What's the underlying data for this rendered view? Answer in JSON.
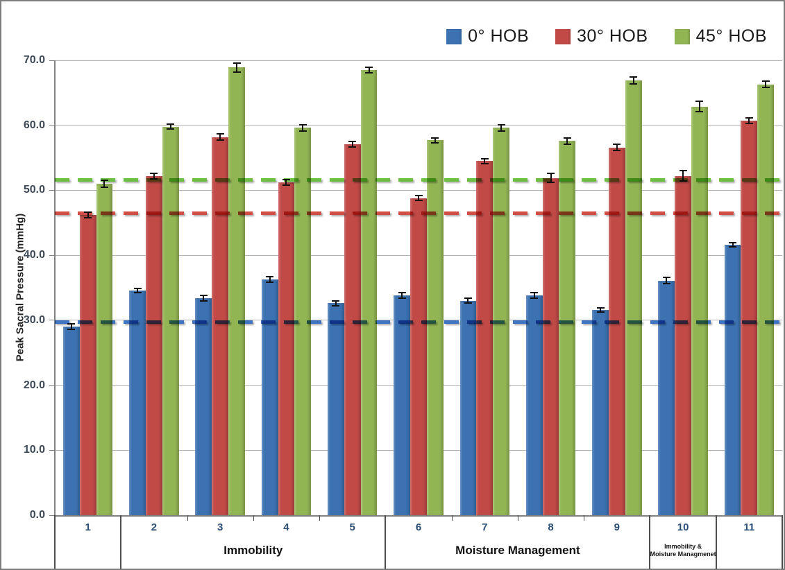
{
  "chart_data": {
    "type": "bar",
    "title": "",
    "xlabel": "",
    "ylabel": "Peak Sacral Pressure (mmHg)",
    "ylim": [
      0,
      70
    ],
    "ytick_step": 10,
    "ytick_labels": [
      "0.0",
      "10.0",
      "20.0",
      "30.0",
      "40.0",
      "50.0",
      "60.0",
      "70.0"
    ],
    "grid": true,
    "legend_position": "top-right",
    "error_bars": true,
    "categories": [
      "1",
      "2",
      "3",
      "4",
      "5",
      "6",
      "7",
      "8",
      "9",
      "10",
      "11"
    ],
    "series": [
      {
        "name": "0° HOB",
        "color": "#3c72b2",
        "values": [
          29.0,
          34.6,
          33.4,
          36.3,
          32.6,
          33.8,
          33.0,
          33.8,
          31.6,
          36.1,
          41.6
        ],
        "errors": [
          0.4,
          0.3,
          0.4,
          0.4,
          0.4,
          0.4,
          0.4,
          0.4,
          0.3,
          0.5,
          0.3
        ]
      },
      {
        "name": "30° HOB",
        "color": "#c14a47",
        "values": [
          46.2,
          52.2,
          58.2,
          51.2,
          57.1,
          48.8,
          54.5,
          51.9,
          56.6,
          52.2,
          60.7
        ],
        "errors": [
          0.4,
          0.4,
          0.5,
          0.4,
          0.4,
          0.4,
          0.4,
          0.7,
          0.5,
          0.8,
          0.4
        ]
      },
      {
        "name": "45° HOB",
        "color": "#92b554",
        "values": [
          51.0,
          59.8,
          68.9,
          59.6,
          68.5,
          57.7,
          59.6,
          57.6,
          66.9,
          62.9,
          66.3
        ],
        "errors": [
          0.5,
          0.4,
          0.7,
          0.5,
          0.4,
          0.4,
          0.5,
          0.5,
          0.5,
          0.8,
          0.5
        ]
      }
    ],
    "reference_lines": [
      {
        "series": "0° HOB",
        "value": 29.7,
        "color": "#3e74c2",
        "style": "dashed"
      },
      {
        "series": "30° HOB",
        "value": 46.5,
        "color": "#d24d44",
        "style": "dashed"
      },
      {
        "series": "45° HOB",
        "value": 51.6,
        "color": "#6cbf43",
        "style": "dashed"
      }
    ],
    "group_spans": [
      {
        "label": "",
        "from": 1,
        "to": 1
      },
      {
        "label": "Immobility",
        "from": 2,
        "to": 5
      },
      {
        "label": "Moisture Management",
        "from": 6,
        "to": 9
      },
      {
        "label": "Immobility &\nMoisture Managmenet",
        "from": 10,
        "to": 10,
        "small": true
      },
      {
        "label": "",
        "from": 11,
        "to": 11
      }
    ]
  }
}
